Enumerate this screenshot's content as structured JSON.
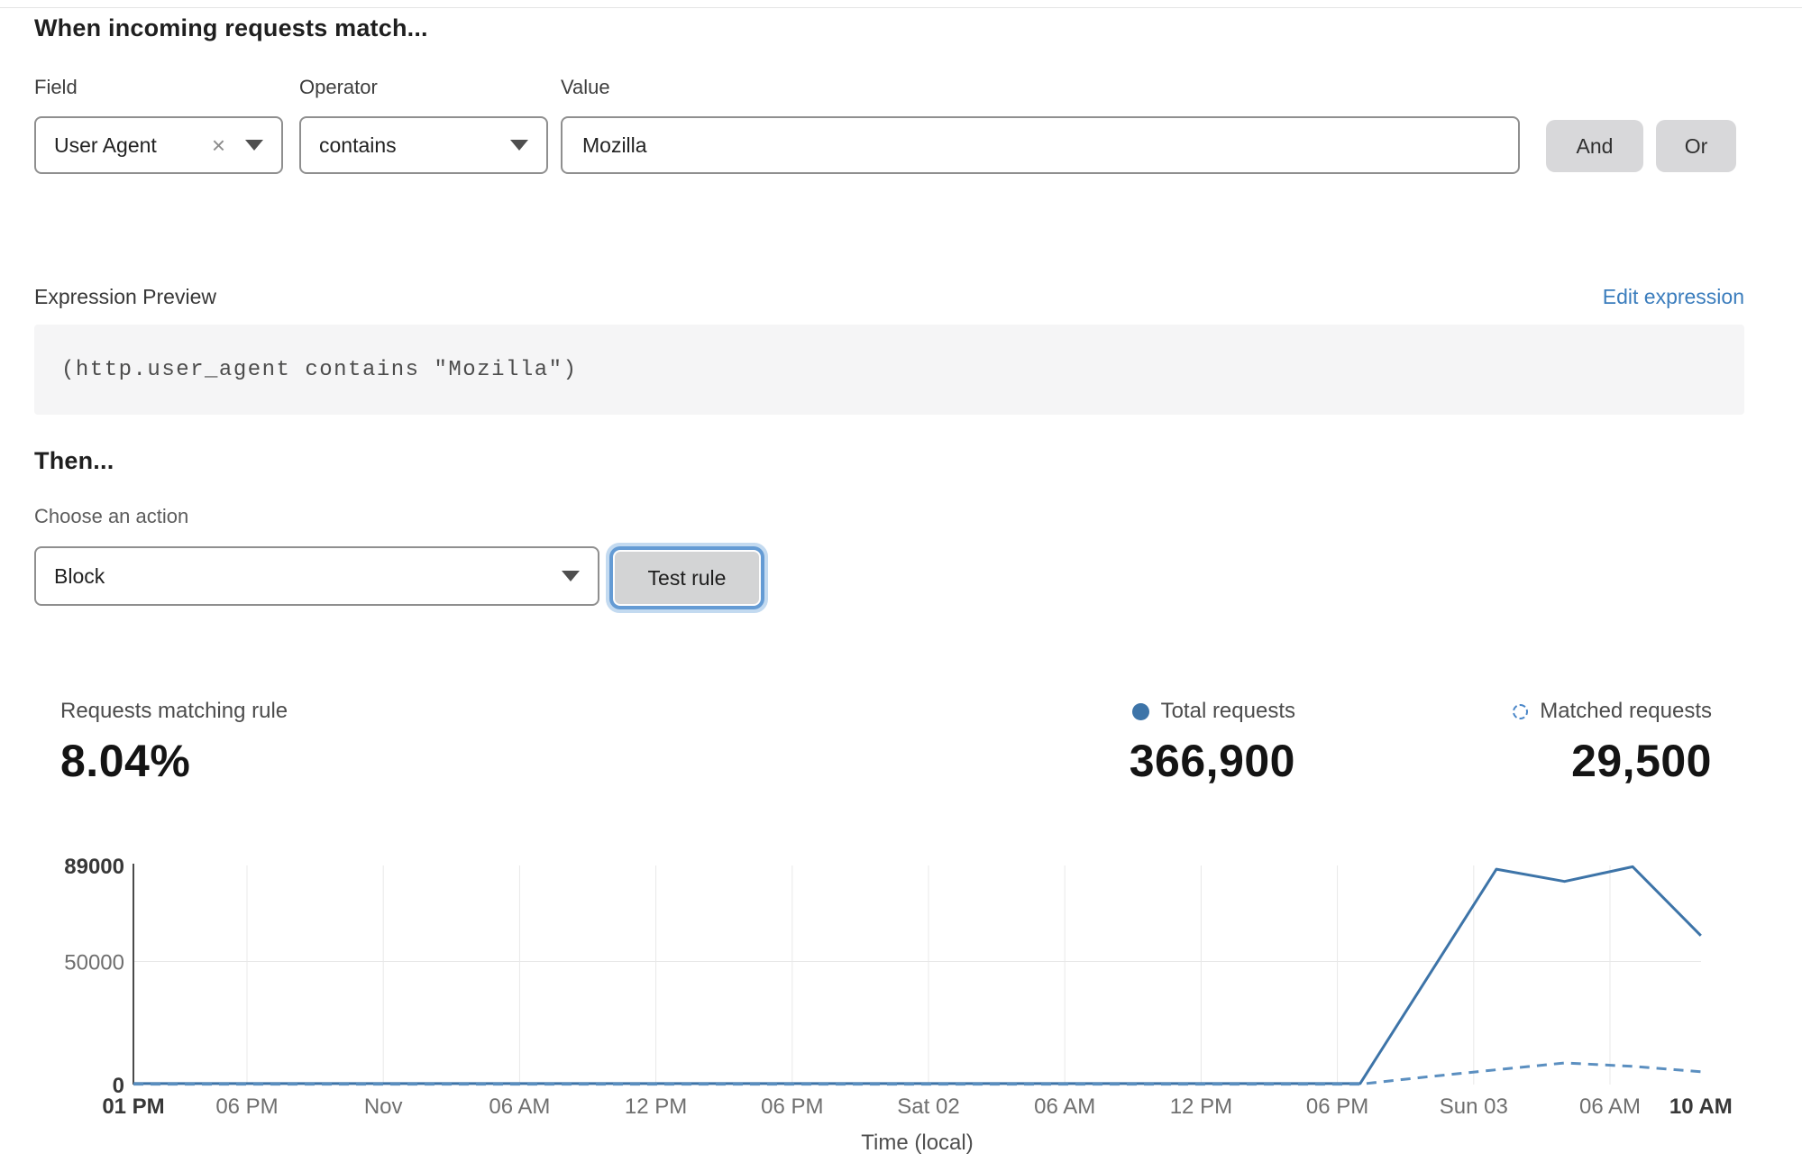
{
  "rule_builder": {
    "title": "When incoming requests match...",
    "field": {
      "label": "Field",
      "value": "User Agent"
    },
    "operator": {
      "label": "Operator",
      "value": "contains"
    },
    "value": {
      "label": "Value",
      "value": "Mozilla"
    },
    "and_label": "And",
    "or_label": "Or"
  },
  "expression": {
    "label": "Expression Preview",
    "edit_link": "Edit expression",
    "code": "(http.user_agent contains \"Mozilla\")"
  },
  "action": {
    "title": "Then...",
    "choose_label": "Choose an action",
    "selected": "Block",
    "test_button": "Test rule"
  },
  "stats": {
    "matching": {
      "label": "Requests matching rule",
      "value": "8.04%"
    },
    "total": {
      "label": "Total requests",
      "value": "366,900"
    },
    "matched": {
      "label": "Matched requests",
      "value": "29,500"
    }
  },
  "icons": {
    "clear": "×"
  },
  "colors": {
    "line_solid": "#3d74a8",
    "line_dashed": "#5b8fc0",
    "legend_dot": "#3d74a8",
    "legend_ring": "#4a86c8",
    "link_blue": "#3b7dbd",
    "focus_ring": "#649bd4",
    "grid": "#e8e8e8",
    "axis": "#4a4a4a",
    "tick": "#6f6f6f",
    "tick_bold": "#383838",
    "xlabel": "#4f4f4f"
  },
  "chart_data": {
    "type": "line",
    "xlabel": "Time (local)",
    "x_unit": "hours from 01 PM (first tick)",
    "ylim": [
      0,
      89000
    ],
    "grid": true,
    "legend_position": "top-right",
    "yticks": [
      {
        "v": 89000,
        "label": "89000",
        "bold": true,
        "grid": false
      },
      {
        "v": 50000,
        "label": "50000",
        "bold": false,
        "grid": true
      },
      {
        "v": 0,
        "label": "0",
        "bold": true,
        "grid": false
      }
    ],
    "xticks": [
      {
        "h": 0,
        "label": "01 PM",
        "bold": true,
        "grid": false
      },
      {
        "h": 5,
        "label": "06 PM",
        "bold": false,
        "grid": true
      },
      {
        "h": 11,
        "label": "Nov",
        "bold": false,
        "grid": true
      },
      {
        "h": 17,
        "label": "06 AM",
        "bold": false,
        "grid": true
      },
      {
        "h": 23,
        "label": "12 PM",
        "bold": false,
        "grid": true
      },
      {
        "h": 29,
        "label": "06 PM",
        "bold": false,
        "grid": true
      },
      {
        "h": 35,
        "label": "Sat 02",
        "bold": false,
        "grid": true
      },
      {
        "h": 41,
        "label": "06 AM",
        "bold": false,
        "grid": true
      },
      {
        "h": 47,
        "label": "12 PM",
        "bold": false,
        "grid": true
      },
      {
        "h": 53,
        "label": "06 PM",
        "bold": false,
        "grid": true
      },
      {
        "h": 59,
        "label": "Sun 03",
        "bold": false,
        "grid": true
      },
      {
        "h": 65,
        "label": "06 AM",
        "bold": false,
        "grid": true
      },
      {
        "h": 69,
        "label": "10 AM",
        "bold": true,
        "grid": false
      }
    ],
    "series": [
      {
        "name": "Total requests",
        "style": "solid",
        "points": [
          [
            0,
            400
          ],
          [
            6,
            400
          ],
          [
            12,
            400
          ],
          [
            18,
            400
          ],
          [
            24,
            400
          ],
          [
            30,
            400
          ],
          [
            36,
            400
          ],
          [
            42,
            400
          ],
          [
            48,
            400
          ],
          [
            54,
            400
          ],
          [
            60,
            87500
          ],
          [
            63,
            82500
          ],
          [
            66,
            88500
          ],
          [
            69,
            60500
          ]
        ]
      },
      {
        "name": "Matched requests",
        "style": "dashed",
        "points": [
          [
            0,
            150
          ],
          [
            6,
            150
          ],
          [
            12,
            150
          ],
          [
            18,
            150
          ],
          [
            24,
            150
          ],
          [
            30,
            150
          ],
          [
            36,
            150
          ],
          [
            42,
            150
          ],
          [
            48,
            150
          ],
          [
            54,
            150
          ],
          [
            57,
            3200
          ],
          [
            60,
            6000
          ],
          [
            63,
            8800
          ],
          [
            66,
            7400
          ],
          [
            69,
            5200
          ]
        ]
      }
    ]
  }
}
